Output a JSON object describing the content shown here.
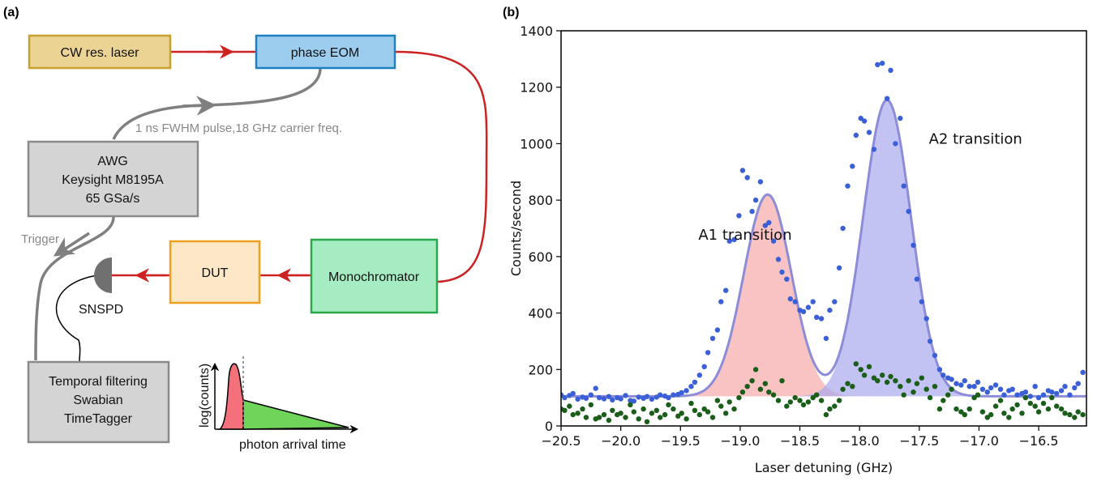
{
  "panel_a": {
    "label": "(a)",
    "boxes": {
      "laser": "CW res. laser",
      "eom": "phase EOM",
      "awg_line1": "AWG",
      "awg_line2": "Keysight M8195A",
      "awg_line3": "65 GSa/s",
      "dut": "DUT",
      "mono": "Monochromator",
      "tagger_line1": "Temporal filtering",
      "tagger_line2": "Swabian",
      "tagger_line3": "TimeTagger"
    },
    "pulse_label": "1 ns FWHM pulse,18 GHz carrier freq.",
    "trigger_label": "Trigger",
    "snspd_label": "SNSPD",
    "inset": {
      "ylabel": "log(counts)",
      "xlabel": "photon arrival time"
    },
    "colors": {
      "laser_fill": "#ebd394",
      "laser_stroke": "#c8a030",
      "eom_fill": "#9ccdee",
      "eom_stroke": "#1f80c0",
      "gray_fill": "#d4d4d4",
      "gray_stroke": "#8a8a8a",
      "dut_fill": "#fde7c6",
      "dut_stroke": "#f0a020",
      "mono_fill": "#a6ecc3",
      "mono_stroke": "#29a84a",
      "fiber": "#cc2222",
      "cable": "#808080"
    }
  },
  "panel_b": {
    "label": "(b)"
  },
  "chart_data": {
    "type": "scatter",
    "xlabel": "Laser detuning (GHz)",
    "ylabel": "Counts/second",
    "xlim": [
      -20.5,
      -16.1
    ],
    "ylim": [
      0,
      1400
    ],
    "xticks": [
      -20.5,
      -20.0,
      -19.5,
      -19.0,
      -18.5,
      -18.0,
      -17.5,
      -17.0,
      -16.5
    ],
    "yticks": [
      0,
      200,
      400,
      600,
      800,
      1000,
      1200,
      1400
    ],
    "xtick_labels": [
      "−20.5",
      "−20.0",
      "−19.5",
      "−19.0",
      "−18.5",
      "−18.0",
      "−17.5",
      "−17.0",
      "−16.5"
    ],
    "annotations": [
      {
        "text": "A1 transition",
        "x": -19.35,
        "y": 660,
        "color": "#d42020"
      },
      {
        "text": "A2 transition",
        "x": -17.42,
        "y": 1000,
        "color": "#4444dd"
      }
    ],
    "fit": {
      "baseline": 105,
      "peaks": [
        {
          "center": -18.77,
          "amplitude": 715,
          "sigma": 0.2
        },
        {
          "center": -17.77,
          "amplitude": 1050,
          "sigma": 0.2
        }
      ],
      "color": "#8c8cd8",
      "fill_A1": "#f7aaaa",
      "fill_A2": "#aaaaee"
    },
    "series": [
      {
        "name": "",
        "color": "#3a5fd6",
        "x": [
          -20.5,
          -20.47,
          -20.43,
          -20.4,
          -20.36,
          -20.32,
          -20.29,
          -20.25,
          -20.21,
          -20.18,
          -20.14,
          -20.1,
          -20.07,
          -20.03,
          -20.0,
          -19.96,
          -19.92,
          -19.89,
          -19.85,
          -19.81,
          -19.78,
          -19.74,
          -19.7,
          -19.67,
          -19.63,
          -19.6,
          -19.56,
          -19.52,
          -19.49,
          -19.45,
          -19.41,
          -19.38,
          -19.34,
          -19.3,
          -19.27,
          -19.23,
          -19.19,
          -19.16,
          -19.12,
          -19.09,
          -19.05,
          -19.01,
          -18.98,
          -18.94,
          -18.9,
          -18.87,
          -18.83,
          -18.79,
          -18.76,
          -18.72,
          -18.68,
          -18.65,
          -18.61,
          -18.58,
          -18.54,
          -18.5,
          -18.47,
          -18.43,
          -18.39,
          -18.36,
          -18.32,
          -18.28,
          -18.25,
          -18.21,
          -18.17,
          -18.14,
          -18.1,
          -18.06,
          -18.03,
          -17.99,
          -17.96,
          -17.92,
          -17.88,
          -17.85,
          -17.81,
          -17.77,
          -17.74,
          -17.7,
          -17.66,
          -17.63,
          -17.59,
          -17.55,
          -17.52,
          -17.48,
          -17.44,
          -17.41,
          -17.37,
          -17.33,
          -17.3,
          -17.26,
          -17.23,
          -17.19,
          -17.15,
          -17.12,
          -17.08,
          -17.04,
          -17.01,
          -16.97,
          -16.93,
          -16.9,
          -16.86,
          -16.82,
          -16.79,
          -16.75,
          -16.72,
          -16.68,
          -16.64,
          -16.61,
          -16.57,
          -16.53,
          -16.5,
          -16.46,
          -16.42,
          -16.39,
          -16.35,
          -16.31,
          -16.28,
          -16.24,
          -16.2,
          -16.17,
          -16.13
        ],
        "y": [
          110,
          100,
          108,
          115,
          95,
          102,
          98,
          110,
          133,
          100,
          96,
          104,
          92,
          100,
          96,
          108,
          90,
          88,
          102,
          98,
          104,
          95,
          102,
          110,
          106,
          100,
          110,
          112,
          118,
          125,
          140,
          155,
          180,
          210,
          260,
          310,
          340,
          440,
          480,
          655,
          660,
          745,
          905,
          880,
          760,
          800,
          865,
          710,
          720,
          655,
          590,
          545,
          520,
          450,
          440,
          410,
          405,
          420,
          440,
          385,
          380,
          310,
          410,
          440,
          560,
          700,
          850,
          920,
          1030,
          1090,
          1080,
          1040,
          980,
          1280,
          1285,
          1160,
          1260,
          1000,
          1090,
          850,
          760,
          640,
          520,
          440,
          380,
          300,
          250,
          200,
          180,
          170,
          165,
          150,
          145,
          160,
          140,
          140,
          155,
          130,
          120,
          135,
          145,
          130,
          110,
          125,
          130,
          110,
          115,
          120,
          105,
          140,
          100,
          110,
          125,
          120,
          115,
          125,
          140,
          110,
          135,
          150,
          190
        ]
      },
      {
        "name": "",
        "color": "#1a5e1a",
        "x": [
          -20.5,
          -20.47,
          -20.43,
          -20.4,
          -20.36,
          -20.32,
          -20.29,
          -20.25,
          -20.21,
          -20.18,
          -20.14,
          -20.1,
          -20.07,
          -20.03,
          -20.0,
          -19.96,
          -19.92,
          -19.89,
          -19.85,
          -19.81,
          -19.78,
          -19.74,
          -19.7,
          -19.67,
          -19.63,
          -19.6,
          -19.56,
          -19.52,
          -19.49,
          -19.45,
          -19.41,
          -19.38,
          -19.34,
          -19.3,
          -19.27,
          -19.23,
          -19.19,
          -19.16,
          -19.12,
          -19.09,
          -19.05,
          -19.01,
          -18.98,
          -18.94,
          -18.9,
          -18.87,
          -18.83,
          -18.79,
          -18.76,
          -18.72,
          -18.68,
          -18.65,
          -18.61,
          -18.58,
          -18.54,
          -18.5,
          -18.47,
          -18.43,
          -18.39,
          -18.36,
          -18.32,
          -18.28,
          -18.25,
          -18.21,
          -18.17,
          -18.14,
          -18.1,
          -18.06,
          -18.03,
          -17.99,
          -17.96,
          -17.92,
          -17.88,
          -17.85,
          -17.81,
          -17.77,
          -17.74,
          -17.7,
          -17.66,
          -17.63,
          -17.59,
          -17.55,
          -17.52,
          -17.48,
          -17.44,
          -17.41,
          -17.37,
          -17.33,
          -17.3,
          -17.26,
          -17.23,
          -17.19,
          -17.15,
          -17.12,
          -17.08,
          -17.04,
          -17.01,
          -16.97,
          -16.93,
          -16.9,
          -16.86,
          -16.82,
          -16.79,
          -16.75,
          -16.72,
          -16.68,
          -16.64,
          -16.61,
          -16.57,
          -16.53,
          -16.5,
          -16.46,
          -16.42,
          -16.39,
          -16.35,
          -16.31,
          -16.28,
          -16.24,
          -16.2,
          -16.17,
          -16.13
        ],
        "y": [
          60,
          55,
          70,
          40,
          45,
          60,
          30,
          75,
          25,
          30,
          40,
          20,
          55,
          40,
          45,
          30,
          75,
          50,
          25,
          60,
          15,
          45,
          55,
          30,
          40,
          75,
          60,
          35,
          45,
          25,
          80,
          55,
          40,
          60,
          50,
          30,
          90,
          70,
          45,
          85,
          60,
          100,
          120,
          140,
          160,
          200,
          130,
          150,
          120,
          110,
          90,
          160,
          70,
          85,
          100,
          90,
          75,
          85,
          100,
          110,
          90,
          40,
          60,
          70,
          90,
          130,
          150,
          140,
          220,
          200,
          180,
          210,
          170,
          160,
          180,
          155,
          175,
          160,
          140,
          110,
          160,
          120,
          150,
          170,
          130,
          100,
          140,
          60,
          90,
          110,
          130,
          60,
          50,
          40,
          60,
          100,
          110,
          50,
          30,
          40,
          70,
          90,
          45,
          30,
          60,
          75,
          45,
          100,
          80,
          70,
          50,
          80,
          60,
          100,
          70,
          60,
          45,
          40,
          30,
          50,
          40
        ]
      }
    ]
  }
}
